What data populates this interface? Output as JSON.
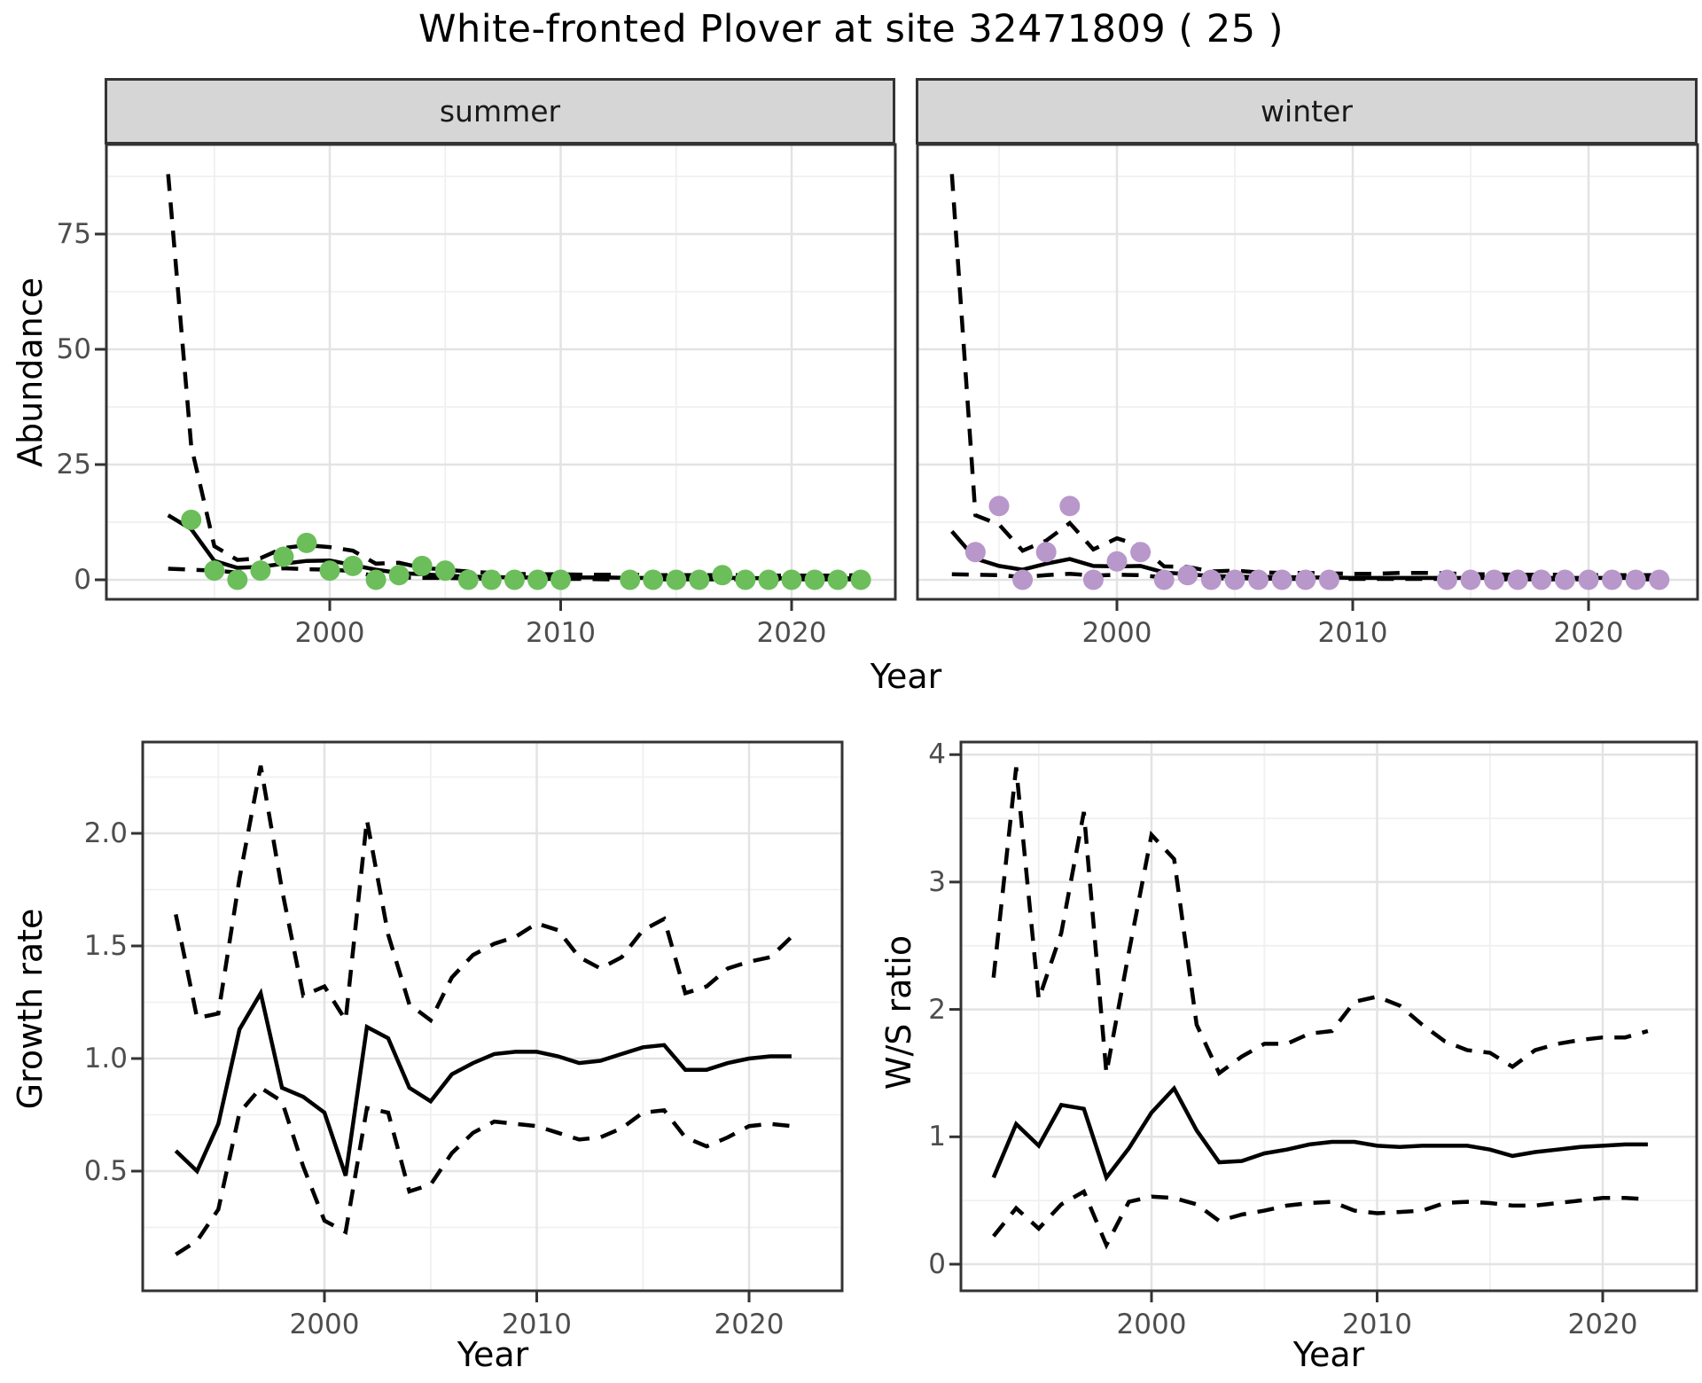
{
  "title": "White-fronted Plover at site 32471809 ( 25 )",
  "figure": {
    "facets": [
      "summer",
      "winter"
    ],
    "legend": "none"
  },
  "colors": {
    "summer_points": "#6BBE5A",
    "winter_points": "#B897CB",
    "fit_line": "#000000",
    "ci_line": "#000000",
    "strip_background": "#D6D6D6",
    "panel_border": "#333333",
    "major_gridline": "#E3E3E3",
    "minor_gridline": "#F0F0F0",
    "tick_label": "#4D4D4D"
  },
  "chart_data": [
    {
      "id": "abundance-summer",
      "type": "line",
      "facet_label": "summer",
      "xlabel": "Year",
      "ylabel": "Abundance",
      "xlim": [
        1990.3,
        2024.5
      ],
      "ylim": [
        -4,
        95
      ],
      "xticks": [
        2000,
        2010,
        2020
      ],
      "xtick_labels": [
        "2000",
        "2010",
        "2020"
      ],
      "x_minor": [
        1995,
        2005,
        2015
      ],
      "yticks": [
        0,
        25,
        50,
        75
      ],
      "ytick_labels": [
        "0",
        "25",
        "50",
        "75"
      ],
      "y_minor": [
        12.5,
        37.5,
        62.5,
        87.5
      ],
      "grid": "on",
      "years": [
        1993,
        1994,
        1995,
        1996,
        1997,
        1998,
        1999,
        2000,
        2001,
        2002,
        2003,
        2004,
        2005,
        2006,
        2007,
        2008,
        2009,
        2010,
        2011,
        2012,
        2013,
        2014,
        2015,
        2016,
        2017,
        2018,
        2019,
        2020,
        2021,
        2022,
        2023
      ],
      "series": [
        {
          "name": "upper-ci",
          "style": "dashed",
          "values": [
            88,
            29,
            7.3,
            4.3,
            4.7,
            6.9,
            7.5,
            7.1,
            6.3,
            3.5,
            3.7,
            2.6,
            2.2,
            1.8,
            1.5,
            1.3,
            1.2,
            1.2,
            1.1,
            1.1,
            1.1,
            1.0,
            1.0,
            1.0,
            1.0,
            1.0,
            0.9,
            0.9,
            0.9,
            0.9,
            1.0
          ]
        },
        {
          "name": "fitted",
          "style": "solid",
          "values": [
            14,
            11,
            4.1,
            2.6,
            2.8,
            3.5,
            4.1,
            4.2,
            3.2,
            2.2,
            1.5,
            1.2,
            0.9,
            0.7,
            0.6,
            0.5,
            0.5,
            0.5,
            0.5,
            0.5,
            0.4,
            0.4,
            0.4,
            0.4,
            0.4,
            0.4,
            0.3,
            0.3,
            0.3,
            0.3,
            0.3
          ]
        },
        {
          "name": "lower-ci",
          "style": "dashed",
          "values": [
            2.4,
            2.2,
            2.0,
            1.6,
            2.2,
            2.5,
            2.3,
            2.2,
            1.9,
            0.7,
            0.5,
            0.4,
            0.4,
            0.3,
            0.2,
            0.2,
            0.2,
            0.2,
            0.2,
            0.1,
            0.1,
            0.1,
            0.1,
            0.1,
            0.1,
            0.1,
            0.1,
            0.1,
            0.1,
            0.1,
            0.1
          ]
        }
      ],
      "observed_points": [
        [
          1994,
          13
        ],
        [
          1995,
          2
        ],
        [
          1996,
          0
        ],
        [
          1997,
          2
        ],
        [
          1998,
          5
        ],
        [
          1999,
          8
        ],
        [
          2000,
          2
        ],
        [
          2001,
          3
        ],
        [
          2002,
          0
        ],
        [
          2003,
          1
        ],
        [
          2004,
          3
        ],
        [
          2005,
          2
        ],
        [
          2006,
          0
        ],
        [
          2007,
          0
        ],
        [
          2008,
          0
        ],
        [
          2009,
          0
        ],
        [
          2010,
          0
        ],
        [
          2013,
          0
        ],
        [
          2014,
          0
        ],
        [
          2015,
          0
        ],
        [
          2016,
          0
        ],
        [
          2017,
          1
        ],
        [
          2018,
          0
        ],
        [
          2019,
          0
        ],
        [
          2020,
          0
        ],
        [
          2021,
          0
        ],
        [
          2022,
          0
        ],
        [
          2023,
          0
        ]
      ],
      "point_color": "#6BBE5A"
    },
    {
      "id": "abundance-winter",
      "type": "line",
      "facet_label": "winter",
      "xlabel": "Year",
      "xlim": [
        1991.5,
        2024.6
      ],
      "ylim": [
        -4,
        95
      ],
      "xticks": [
        2000,
        2010,
        2020
      ],
      "xtick_labels": [
        "2000",
        "2010",
        "2020"
      ],
      "x_minor": [
        1995,
        2005,
        2015
      ],
      "yticks": [
        0,
        25,
        50,
        75
      ],
      "ytick_labels": [
        "0",
        "25",
        "50",
        "75"
      ],
      "y_minor": [
        12.5,
        37.5,
        62.5,
        87.5
      ],
      "grid": "on",
      "years": [
        1993,
        1994,
        1995,
        1996,
        1997,
        1998,
        1999,
        2000,
        2001,
        2002,
        2003,
        2004,
        2005,
        2006,
        2007,
        2008,
        2009,
        2010,
        2011,
        2012,
        2013,
        2014,
        2015,
        2016,
        2017,
        2018,
        2019,
        2020,
        2021,
        2022,
        2023
      ],
      "series": [
        {
          "name": "upper-ci",
          "style": "dashed",
          "values": [
            88,
            14,
            12,
            6.3,
            8.5,
            12.3,
            6.6,
            9.0,
            7.4,
            2.9,
            2.8,
            1.8,
            2.0,
            1.6,
            1.5,
            1.5,
            1.4,
            1.3,
            1.3,
            1.5,
            1.5,
            1.4,
            1.2,
            1.2,
            1.1,
            1.1,
            1.1,
            1.0,
            1.0,
            1.0,
            1.0
          ]
        },
        {
          "name": "fitted",
          "style": "solid",
          "values": [
            10.5,
            4.6,
            3.0,
            2.2,
            3.5,
            4.5,
            3.0,
            2.9,
            3.0,
            1.6,
            1.2,
            0.8,
            0.7,
            0.6,
            0.6,
            0.5,
            0.5,
            0.4,
            0.4,
            0.4,
            0.4,
            0.4,
            0.4,
            0.4,
            0.4,
            0.4,
            0.4,
            0.4,
            0.4,
            0.4,
            0.4
          ]
        },
        {
          "name": "lower-ci",
          "style": "dashed",
          "values": [
            1.2,
            1.1,
            1.0,
            0.6,
            1.0,
            1.3,
            0.9,
            1.1,
            1.0,
            0.5,
            0.4,
            0.3,
            0.3,
            0.3,
            0.2,
            0.2,
            0.2,
            0.2,
            0.2,
            0.2,
            0.2,
            0.2,
            0.1,
            0.1,
            0.1,
            0.1,
            0.1,
            0.1,
            0.1,
            0.1,
            0.1
          ]
        }
      ],
      "observed_points": [
        [
          1994,
          6
        ],
        [
          1995,
          16
        ],
        [
          1996,
          0
        ],
        [
          1997,
          6
        ],
        [
          1998,
          16
        ],
        [
          1999,
          0
        ],
        [
          2000,
          4
        ],
        [
          2001,
          6
        ],
        [
          2002,
          0
        ],
        [
          2003,
          1
        ],
        [
          2004,
          0
        ],
        [
          2005,
          0
        ],
        [
          2006,
          0
        ],
        [
          2007,
          0
        ],
        [
          2008,
          0
        ],
        [
          2009,
          0
        ],
        [
          2014,
          0
        ],
        [
          2015,
          0
        ],
        [
          2016,
          0
        ],
        [
          2017,
          0
        ],
        [
          2018,
          0
        ],
        [
          2019,
          0
        ],
        [
          2020,
          0
        ],
        [
          2021,
          0
        ],
        [
          2022,
          0
        ],
        [
          2023,
          0
        ]
      ],
      "point_color": "#B897CB"
    },
    {
      "id": "growth-rate",
      "type": "line",
      "xlabel": "Year",
      "ylabel": "Growth rate",
      "xlim": [
        1991.4,
        2024.4
      ],
      "ylim": [
        0,
        2.4
      ],
      "xticks": [
        2000,
        2010,
        2020
      ],
      "xtick_labels": [
        "2000",
        "2010",
        "2020"
      ],
      "x_minor": [
        1995,
        2005,
        2015
      ],
      "yticks": [
        0.5,
        1.0,
        1.5,
        2.0
      ],
      "ytick_labels": [
        "0.5",
        "1.0",
        "1.5",
        "2.0"
      ],
      "y_minor": [
        0.25,
        0.75,
        1.25,
        1.75,
        2.25
      ],
      "grid": "on",
      "years": [
        1993,
        1994,
        1995,
        1996,
        1997,
        1998,
        1999,
        2000,
        2001,
        2002,
        2003,
        2004,
        2005,
        2006,
        2007,
        2008,
        2009,
        2010,
        2011,
        2012,
        2013,
        2014,
        2015,
        2016,
        2017,
        2018,
        2019,
        2020,
        2021,
        2022
      ],
      "series": [
        {
          "name": "upper-ci",
          "style": "dashed",
          "values": [
            1.64,
            1.18,
            1.2,
            1.8,
            2.3,
            1.75,
            1.28,
            1.32,
            1.17,
            2.06,
            1.55,
            1.24,
            1.17,
            1.36,
            1.46,
            1.51,
            1.54,
            1.6,
            1.57,
            1.45,
            1.4,
            1.45,
            1.57,
            1.62,
            1.29,
            1.32,
            1.4,
            1.43,
            1.45,
            1.54
          ]
        },
        {
          "name": "fitted",
          "style": "solid",
          "values": [
            0.59,
            0.5,
            0.71,
            1.13,
            1.29,
            0.87,
            0.83,
            0.76,
            0.48,
            1.14,
            1.09,
            0.87,
            0.81,
            0.93,
            0.98,
            1.02,
            1.03,
            1.03,
            1.01,
            0.98,
            0.99,
            1.02,
            1.05,
            1.06,
            0.95,
            0.95,
            0.98,
            1.0,
            1.01,
            1.01
          ]
        },
        {
          "name": "lower-ci",
          "style": "dashed",
          "values": [
            0.13,
            0.19,
            0.33,
            0.76,
            0.87,
            0.81,
            0.52,
            0.28,
            0.23,
            0.78,
            0.76,
            0.41,
            0.44,
            0.58,
            0.67,
            0.72,
            0.71,
            0.7,
            0.67,
            0.64,
            0.65,
            0.69,
            0.76,
            0.77,
            0.65,
            0.61,
            0.65,
            0.7,
            0.71,
            0.7
          ]
        }
      ]
    },
    {
      "id": "ws-ratio",
      "type": "line",
      "xlabel": "Year",
      "ylabel": "W/S ratio",
      "xlim": [
        1991.5,
        2024.2
      ],
      "ylim": [
        -0.2,
        4.1
      ],
      "xticks": [
        2000,
        2010,
        2020
      ],
      "xtick_labels": [
        "2000",
        "2010",
        "2020"
      ],
      "x_minor": [
        1995,
        2005,
        2015
      ],
      "yticks": [
        0,
        1,
        2,
        3,
        4
      ],
      "ytick_labels": [
        "0",
        "1",
        "2",
        "3",
        "4"
      ],
      "y_minor": [
        0.5,
        1.5,
        2.5,
        3.5
      ],
      "grid": "on",
      "years": [
        1993,
        1994,
        1995,
        1996,
        1997,
        1998,
        1999,
        2000,
        2001,
        2002,
        2003,
        2004,
        2005,
        2006,
        2007,
        2008,
        2009,
        2010,
        2011,
        2012,
        2013,
        2014,
        2015,
        2016,
        2017,
        2018,
        2019,
        2020,
        2021,
        2022
      ],
      "series": [
        {
          "name": "upper-ci",
          "style": "dashed",
          "values": [
            2.25,
            3.9,
            2.08,
            2.6,
            3.55,
            1.5,
            2.45,
            3.37,
            3.18,
            1.88,
            1.5,
            1.63,
            1.73,
            1.73,
            1.81,
            1.83,
            2.06,
            2.1,
            2.03,
            1.88,
            1.75,
            1.68,
            1.66,
            1.55,
            1.68,
            1.73,
            1.76,
            1.78,
            1.78,
            1.83
          ]
        },
        {
          "name": "fitted",
          "style": "solid",
          "values": [
            0.68,
            1.1,
            0.93,
            1.25,
            1.22,
            0.68,
            0.91,
            1.19,
            1.38,
            1.05,
            0.8,
            0.81,
            0.87,
            0.9,
            0.94,
            0.96,
            0.96,
            0.93,
            0.92,
            0.93,
            0.93,
            0.93,
            0.9,
            0.85,
            0.88,
            0.9,
            0.92,
            0.93,
            0.94,
            0.94
          ]
        },
        {
          "name": "lower-ci",
          "style": "dashed",
          "values": [
            0.22,
            0.44,
            0.28,
            0.47,
            0.57,
            0.15,
            0.49,
            0.53,
            0.52,
            0.47,
            0.34,
            0.39,
            0.42,
            0.46,
            0.48,
            0.49,
            0.42,
            0.4,
            0.41,
            0.42,
            0.48,
            0.49,
            0.48,
            0.46,
            0.46,
            0.48,
            0.5,
            0.52,
            0.52,
            0.51
          ]
        }
      ]
    }
  ]
}
